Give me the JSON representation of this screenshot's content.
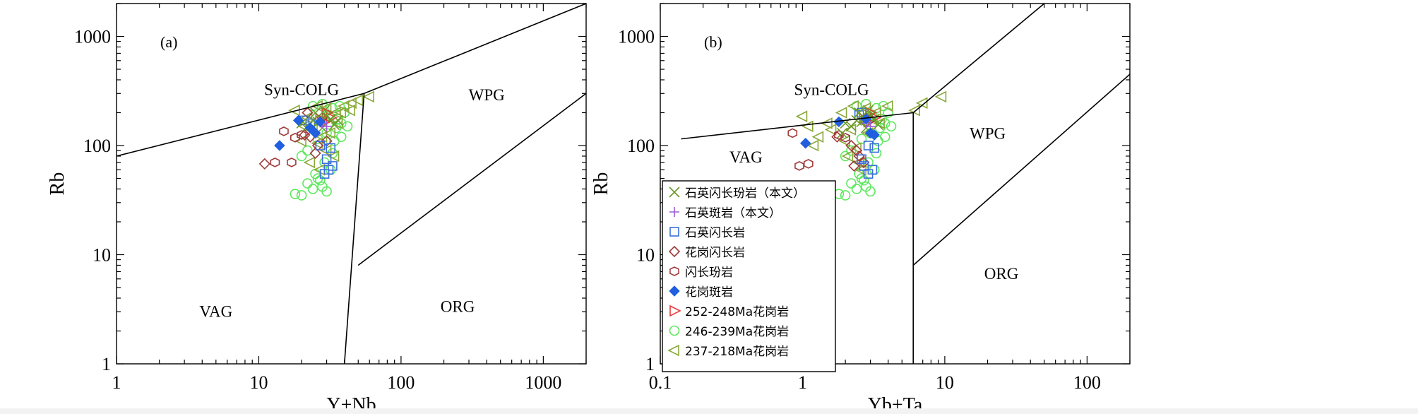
{
  "chart_data": [
    {
      "type": "scatter",
      "panel_label": "(a)",
      "xlabel": "Y+Nb",
      "ylabel": "Rb",
      "xscale": "log",
      "yscale": "log",
      "xlim": [
        1,
        2000
      ],
      "ylim": [
        1,
        2000
      ],
      "xticks": [
        {
          "value": 1,
          "label": "1"
        },
        {
          "value": 10,
          "label": "10"
        },
        {
          "value": 100,
          "label": "100"
        },
        {
          "value": 1000,
          "label": "1000"
        }
      ],
      "yticks": [
        {
          "value": 1,
          "label": "1"
        },
        {
          "value": 10,
          "label": "10"
        },
        {
          "value": 100,
          "label": "100"
        },
        {
          "value": 1000,
          "label": "1000"
        }
      ],
      "fields": [
        {
          "label": "Syn-COLG",
          "x": 20,
          "y": 290
        },
        {
          "label": "WPG",
          "x": 400,
          "y": 260
        },
        {
          "label": "VAG",
          "x": 5,
          "y": 2.7
        },
        {
          "label": "ORG",
          "x": 250,
          "y": 3
        }
      ],
      "boundaries": [
        [
          [
            1,
            80
          ],
          [
            55,
            300
          ]
        ],
        [
          [
            55,
            300
          ],
          [
            2000,
            2000
          ]
        ],
        [
          [
            55,
            300
          ],
          [
            40,
            1
          ]
        ],
        [
          [
            50,
            8
          ],
          [
            2000,
            300
          ]
        ]
      ],
      "series": [
        {
          "name": "qdp",
          "points": [
            [
              22,
              150
            ],
            [
              24,
              170
            ],
            [
              26,
              165
            ],
            [
              28,
              145
            ],
            [
              30,
              185
            ],
            [
              25,
              200
            ],
            [
              32,
              175
            ],
            [
              20,
              160
            ],
            [
              27,
              180
            ],
            [
              34,
              155
            ],
            [
              29,
              210
            ],
            [
              36,
              170
            ]
          ]
        },
        {
          "name": "qp",
          "points": [
            [
              28,
              160
            ],
            [
              30,
              150
            ]
          ]
        },
        {
          "name": "qd",
          "points": [
            [
              21,
              170
            ],
            [
              23,
              160
            ],
            [
              30,
              75
            ],
            [
              32,
              95
            ],
            [
              31,
              60
            ],
            [
              29,
              55
            ],
            [
              33,
              65
            ],
            [
              27,
              100
            ]
          ]
        },
        {
          "name": "gd",
          "points": [
            [
              11,
              68
            ],
            [
              21,
              125
            ],
            [
              23,
              120
            ],
            [
              26,
              100
            ],
            [
              30,
              110
            ],
            [
              28,
              180
            ],
            [
              22,
              200
            ],
            [
              25,
              85
            ]
          ]
        },
        {
          "name": "dp",
          "points": [
            [
              13,
              70
            ],
            [
              17,
              70
            ],
            [
              15,
              135
            ],
            [
              20,
              125
            ],
            [
              18,
              118
            ]
          ]
        },
        {
          "name": "gp",
          "points": [
            [
              14,
              100
            ],
            [
              19,
              170
            ],
            [
              23,
              145
            ],
            [
              25,
              130
            ],
            [
              27,
              165
            ]
          ]
        },
        {
          "name": "g252",
          "points": [
            [
              27,
              175
            ],
            [
              29,
              165
            ],
            [
              32,
              180
            ],
            [
              30,
              200
            ]
          ]
        },
        {
          "name": "g246",
          "points": [
            [
              18,
              36
            ],
            [
              20,
              35
            ],
            [
              22,
              45
            ],
            [
              24,
              40
            ],
            [
              26,
              50
            ],
            [
              28,
              42
            ],
            [
              30,
              38
            ],
            [
              32,
              60
            ],
            [
              35,
              145
            ],
            [
              38,
              160
            ],
            [
              28,
              240
            ],
            [
              33,
              220
            ],
            [
              40,
              200
            ],
            [
              36,
              175
            ],
            [
              24,
              230
            ],
            [
              30,
              130
            ],
            [
              26,
              115
            ],
            [
              34,
              110
            ],
            [
              22,
              90
            ],
            [
              20,
              80
            ],
            [
              38,
              120
            ],
            [
              42,
              150
            ],
            [
              31,
              190
            ],
            [
              37,
              230
            ],
            [
              25,
              55
            ],
            [
              29,
              70
            ],
            [
              33,
              85
            ],
            [
              27,
              48
            ]
          ]
        },
        {
          "name": "g237",
          "points": [
            [
              18,
              210
            ],
            [
              22,
              180
            ],
            [
              26,
              230
            ],
            [
              30,
              220
            ],
            [
              35,
              200
            ],
            [
              40,
              230
            ],
            [
              45,
              245
            ],
            [
              50,
              260
            ],
            [
              60,
              280
            ],
            [
              24,
              140
            ],
            [
              28,
              120
            ],
            [
              32,
              130
            ],
            [
              36,
              160
            ],
            [
              20,
              110
            ],
            [
              26,
              105
            ],
            [
              30,
              90
            ],
            [
              34,
              80
            ],
            [
              23,
              70
            ],
            [
              27,
              60
            ],
            [
              21,
              150
            ],
            [
              38,
              200
            ],
            [
              44,
              210
            ]
          ]
        }
      ]
    },
    {
      "type": "scatter",
      "panel_label": "(b)",
      "xlabel": "Yb+Ta",
      "ylabel": "Rb",
      "xscale": "log",
      "yscale": "log",
      "xlim": [
        0.1,
        200
      ],
      "ylim": [
        1,
        2000
      ],
      "xticks": [
        {
          "value": 0.1,
          "label": "0.1"
        },
        {
          "value": 1,
          "label": "1"
        },
        {
          "value": 10,
          "label": "10"
        },
        {
          "value": 100,
          "label": "100"
        }
      ],
      "yticks": [
        {
          "value": 1,
          "label": "1"
        },
        {
          "value": 10,
          "label": "10"
        },
        {
          "value": 100,
          "label": "100"
        },
        {
          "value": 1000,
          "label": "1000"
        }
      ],
      "fields": [
        {
          "label": "Syn-COLG",
          "x": 1.6,
          "y": 290
        },
        {
          "label": "WPG",
          "x": 20,
          "y": 115
        },
        {
          "label": "VAG",
          "x": 0.4,
          "y": 70
        },
        {
          "label": "ORG",
          "x": 25,
          "y": 6
        }
      ],
      "boundaries": [
        [
          [
            0.14,
            115
          ],
          [
            6,
            200
          ]
        ],
        [
          [
            6,
            200
          ],
          [
            50,
            2000
          ]
        ],
        [
          [
            6,
            200
          ],
          [
            6,
            1
          ]
        ],
        [
          [
            6,
            8
          ],
          [
            200,
            450
          ]
        ]
      ],
      "series": [
        {
          "name": "qdp",
          "points": [
            [
              2.2,
              150
            ],
            [
              2.4,
              170
            ],
            [
              2.6,
              165
            ],
            [
              2.8,
              145
            ],
            [
              3,
              185
            ],
            [
              2.5,
              200
            ],
            [
              3.2,
              175
            ],
            [
              2,
              160
            ],
            [
              2.7,
              180
            ],
            [
              3.4,
              155
            ],
            [
              2.9,
              210
            ],
            [
              1.9,
              130
            ]
          ]
        },
        {
          "name": "qp",
          "points": [
            [
              2.8,
              160
            ],
            [
              3,
              150
            ]
          ]
        },
        {
          "name": "qd",
          "points": [
            [
              2.6,
              200
            ],
            [
              2.5,
              190
            ],
            [
              2.9,
              100
            ],
            [
              3.2,
              95
            ],
            [
              3.1,
              60
            ],
            [
              2.9,
              55
            ],
            [
              2.7,
              65
            ],
            [
              2.6,
              75
            ]
          ]
        },
        {
          "name": "gd",
          "points": [
            [
              1.75,
              120
            ],
            [
              2.2,
              100
            ],
            [
              2.4,
              90
            ],
            [
              2.5,
              80
            ],
            [
              2.7,
              70
            ],
            [
              2.8,
              180
            ],
            [
              3,
              175
            ],
            [
              2.3,
              65
            ]
          ]
        },
        {
          "name": "dp",
          "points": [
            [
              0.95,
              65
            ],
            [
              1.1,
              68
            ],
            [
              0.85,
              130
            ],
            [
              1.8,
              125
            ],
            [
              2,
              118
            ]
          ]
        },
        {
          "name": "gp",
          "points": [
            [
              1.05,
              105
            ],
            [
              1.8,
              165
            ],
            [
              2.8,
              175
            ],
            [
              3,
              130
            ],
            [
              3.2,
              125
            ]
          ]
        },
        {
          "name": "g252",
          "points": [
            [
              2.7,
              175
            ],
            [
              2.9,
              165
            ],
            [
              3.2,
              180
            ],
            [
              3,
              200
            ]
          ]
        },
        {
          "name": "g246",
          "points": [
            [
              1.8,
              36
            ],
            [
              2,
              35
            ],
            [
              2.2,
              45
            ],
            [
              2.4,
              40
            ],
            [
              2.6,
              50
            ],
            [
              2.8,
              42
            ],
            [
              3,
              38
            ],
            [
              3.2,
              60
            ],
            [
              3.5,
              145
            ],
            [
              3.8,
              160
            ],
            [
              2.8,
              240
            ],
            [
              3.3,
              220
            ],
            [
              4,
              200
            ],
            [
              3.6,
              175
            ],
            [
              2.4,
              230
            ],
            [
              3,
              130
            ],
            [
              2.6,
              115
            ],
            [
              3.4,
              110
            ],
            [
              2.2,
              90
            ],
            [
              2,
              80
            ],
            [
              3.8,
              120
            ],
            [
              4.2,
              150
            ],
            [
              3.1,
              190
            ],
            [
              3.7,
              230
            ],
            [
              2.5,
              55
            ],
            [
              2.9,
              70
            ],
            [
              3.3,
              85
            ],
            [
              2.7,
              48
            ]
          ]
        },
        {
          "name": "g237",
          "points": [
            [
              1,
              185
            ],
            [
              1.1,
              150
            ],
            [
              1.5,
              160
            ],
            [
              1.9,
              200
            ],
            [
              2.3,
              230
            ],
            [
              2.8,
              220
            ],
            [
              3.3,
              200
            ],
            [
              4,
              230
            ],
            [
              6.2,
              210
            ],
            [
              7,
              245
            ],
            [
              9.5,
              280
            ],
            [
              1.3,
              120
            ],
            [
              1.6,
              140
            ],
            [
              2,
              110
            ],
            [
              2.4,
              95
            ],
            [
              2.1,
              80
            ],
            [
              2.5,
              70
            ],
            [
              2.2,
              140
            ],
            [
              2.9,
              130
            ],
            [
              3.5,
              160
            ],
            [
              1.2,
              100
            ],
            [
              2.6,
              60
            ]
          ]
        }
      ]
    }
  ],
  "legend": [
    {
      "key": "qdp",
      "marker": "x",
      "color": "#6a9a2a",
      "label": "石英闪长玢岩（本文）"
    },
    {
      "key": "qp",
      "marker": "plus",
      "color": "#9a5ad6",
      "label": "石英斑岩（本文）"
    },
    {
      "key": "qd",
      "marker": "square",
      "color": "#3a6fdc",
      "label": "石英闪长岩"
    },
    {
      "key": "gd",
      "marker": "diamond-open",
      "color": "#a03a3a",
      "label": "花岗闪长岩"
    },
    {
      "key": "dp",
      "marker": "hexagon",
      "color": "#a03a3a",
      "label": "闪长玢岩"
    },
    {
      "key": "gp",
      "marker": "diamond-filled",
      "color": "#1f5fe0",
      "label": "花岗斑岩"
    },
    {
      "key": "g252",
      "marker": "tri-right",
      "color": "#e83a3a",
      "label": "252-248Ma花岗岩"
    },
    {
      "key": "g246",
      "marker": "circle",
      "color": "#5ee85e",
      "label": "246-239Ma花岗岩"
    },
    {
      "key": "g237",
      "marker": "tri-left",
      "color": "#8aa83a",
      "label": "237-218Ma花岗岩"
    }
  ]
}
